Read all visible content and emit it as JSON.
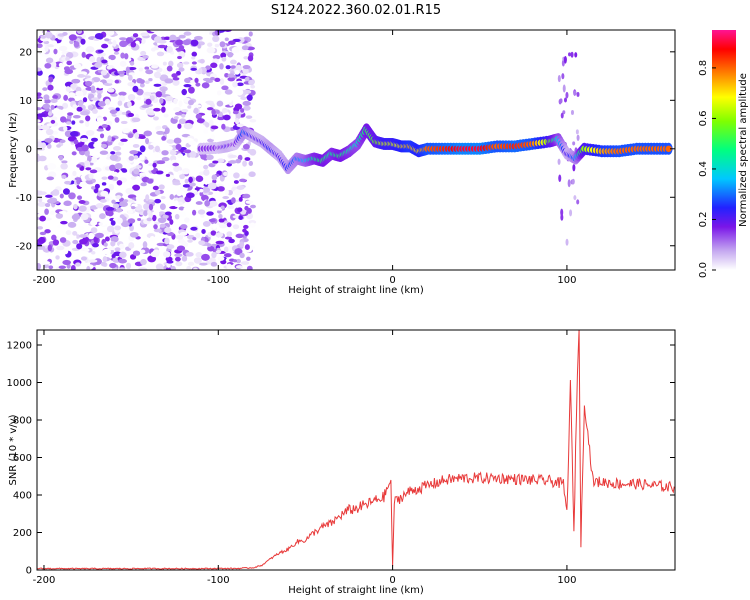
{
  "title": "S124.2022.360.02.01.R15",
  "chart_data": [
    {
      "type": "heatmap",
      "xlabel": "Height of straight line (km)",
      "ylabel": "Frequency (Hz)",
      "xlim": [
        -204,
        162
      ],
      "ylim": [
        -25,
        24.5
      ],
      "xticks": [
        -200,
        -100,
        0,
        100
      ],
      "yticks": [
        -20,
        -10,
        0,
        10,
        20
      ],
      "colorbar": {
        "label": "Normalized spectral amplitude",
        "range": [
          0,
          0.95
        ],
        "ticks": [
          "0.0",
          "0.2",
          "0.4",
          "0.6",
          "0.8"
        ],
        "tick_values": [
          0,
          0.2,
          0.4,
          0.6,
          0.8
        ]
      },
      "ridge": {
        "x": [
          -110,
          -100,
          -95,
          -90,
          -85,
          -80,
          -75,
          -70,
          -65,
          -60,
          -55,
          -50,
          -45,
          -40,
          -35,
          -30,
          -25,
          -20,
          -15,
          -10,
          -5,
          0,
          5,
          10,
          15,
          20,
          30,
          40,
          50,
          60,
          70,
          80,
          90,
          95,
          100,
          105,
          110,
          120,
          130,
          140,
          150,
          160
        ],
        "freq": [
          0,
          0.2,
          0.5,
          1,
          3.5,
          2.5,
          1.5,
          0,
          -1.5,
          -4,
          -2,
          -2.5,
          -2,
          -2.5,
          -1,
          -1.5,
          -0.5,
          1,
          4,
          1.5,
          1,
          1,
          0.5,
          0.5,
          -0.5,
          0,
          0,
          0,
          0,
          0.5,
          0.5,
          1,
          1.5,
          2,
          -1,
          -2,
          0,
          -0.5,
          -0.5,
          0,
          0,
          0
        ],
        "amplitude": [
          0.15,
          0.15,
          0.2,
          0.15,
          0.3,
          0.2,
          0.2,
          0.25,
          0.2,
          0.25,
          0.3,
          0.35,
          0.45,
          0.5,
          0.45,
          0.5,
          0.45,
          0.4,
          0.5,
          0.55,
          0.65,
          0.65,
          0.7,
          0.75,
          0.7,
          0.8,
          0.85,
          0.9,
          0.9,
          0.8,
          0.85,
          0.8,
          0.6,
          0.4,
          0.2,
          0.3,
          0.6,
          0.75,
          0.8,
          0.8,
          0.8,
          0.8
        ]
      },
      "noise_region_x": [
        -204,
        -80
      ],
      "noise_amplitude_range": [
        0.0,
        0.2
      ]
    },
    {
      "type": "line",
      "xlabel": "Height of straight line (km)",
      "ylabel": "SNR (10 * v/v)",
      "xlim": [
        -204,
        162
      ],
      "ylim": [
        0,
        1280
      ],
      "xticks": [
        -200,
        -100,
        0,
        100
      ],
      "yticks": [
        0,
        200,
        400,
        600,
        800,
        1000,
        1200
      ],
      "color": "#e83a3a",
      "series": [
        {
          "x": [
            -204,
            -180,
            -160,
            -140,
            -120,
            -100,
            -90,
            -80,
            -75,
            -70,
            -65,
            -60,
            -55,
            -50,
            -45,
            -40,
            -35,
            -30,
            -25,
            -20,
            -15,
            -10,
            -5,
            -1,
            0,
            1,
            5,
            10,
            20,
            30,
            40,
            50,
            60,
            70,
            80,
            90,
            95,
            98,
            100,
            102,
            104,
            106,
            107,
            108,
            110,
            115,
            120,
            130,
            140,
            150,
            162
          ],
          "values": [
            8,
            7,
            7,
            8,
            7,
            8,
            8,
            12,
            25,
            60,
            90,
            110,
            150,
            160,
            200,
            230,
            250,
            290,
            320,
            330,
            350,
            370,
            390,
            480,
            20,
            360,
            390,
            420,
            450,
            480,
            490,
            490,
            490,
            485,
            480,
            475,
            465,
            460,
            300,
            1000,
            200,
            1060,
            1280,
            120,
            900,
            470,
            470,
            460,
            460,
            450,
            440
          ]
        }
      ]
    }
  ]
}
